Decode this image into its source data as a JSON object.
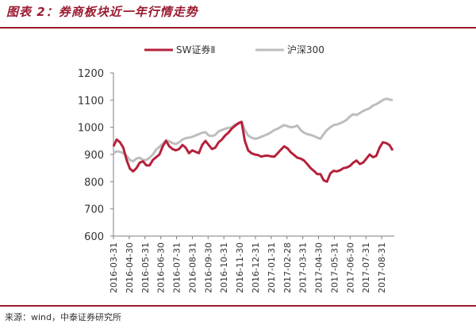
{
  "header": {
    "title": "图表 2：券商板块近一年行情走势"
  },
  "footer": {
    "source": "来源：wind，中泰证券研究所"
  },
  "colors": {
    "accent": "#9b1b30",
    "sw": "#b5213a",
    "hs300": "#bdbdbd"
  },
  "chart_data": {
    "type": "line",
    "title": "",
    "xlabel": "",
    "ylabel": "",
    "ylim": [
      600,
      1200
    ],
    "yticks": [
      600,
      700,
      800,
      900,
      1000,
      1100,
      1200
    ],
    "grid": false,
    "legend_position": "top",
    "x_tick_labels": [
      "2016-03-31",
      "2016-04-30",
      "2016-05-31",
      "2016-06-30",
      "2016-07-31",
      "2016-08-31",
      "2016-09-30",
      "2016-10-31",
      "2016-11-30",
      "2016-12-31",
      "2017-01-31",
      "2017-02-28",
      "2017-03-31",
      "2017-04-30",
      "2017-05-31",
      "2017-06-30",
      "2017-07-31",
      "2017-08-31"
    ],
    "series": [
      {
        "name": "SW证券Ⅱ",
        "color": "#b5213a",
        "values": [
          930,
          955,
          945,
          925,
          880,
          848,
          838,
          850,
          870,
          875,
          860,
          860,
          880,
          890,
          900,
          930,
          950,
          930,
          920,
          915,
          920,
          935,
          925,
          905,
          915,
          910,
          905,
          935,
          950,
          935,
          920,
          925,
          945,
          955,
          970,
          980,
          995,
          1005,
          1015,
          1020,
          950,
          915,
          905,
          900,
          898,
          892,
          895,
          896,
          893,
          892,
          905,
          918,
          930,
          922,
          908,
          898,
          888,
          885,
          878,
          865,
          850,
          840,
          828,
          828,
          805,
          800,
          830,
          840,
          838,
          842,
          850,
          852,
          858,
          870,
          878,
          865,
          870,
          885,
          900,
          890,
          895,
          925,
          945,
          942,
          935,
          915
        ]
      },
      {
        "name": "沪深300",
        "color": "#bdbdbd",
        "values": [
          905,
          912,
          910,
          905,
          895,
          880,
          875,
          885,
          888,
          880,
          880,
          888,
          900,
          918,
          928,
          940,
          952,
          948,
          942,
          938,
          945,
          955,
          960,
          962,
          965,
          970,
          975,
          980,
          982,
          970,
          968,
          972,
          985,
          990,
          995,
          998,
          1000,
          1010,
          1012,
          1020,
          990,
          970,
          962,
          958,
          960,
          965,
          970,
          975,
          982,
          990,
          995,
          1002,
          1008,
          1004,
          1000,
          1002,
          1006,
          990,
          980,
          975,
          972,
          968,
          962,
          958,
          975,
          990,
          1000,
          1008,
          1010,
          1015,
          1020,
          1028,
          1040,
          1048,
          1045,
          1052,
          1060,
          1065,
          1070,
          1080,
          1085,
          1092,
          1100,
          1105,
          1102,
          1100
        ]
      }
    ]
  }
}
